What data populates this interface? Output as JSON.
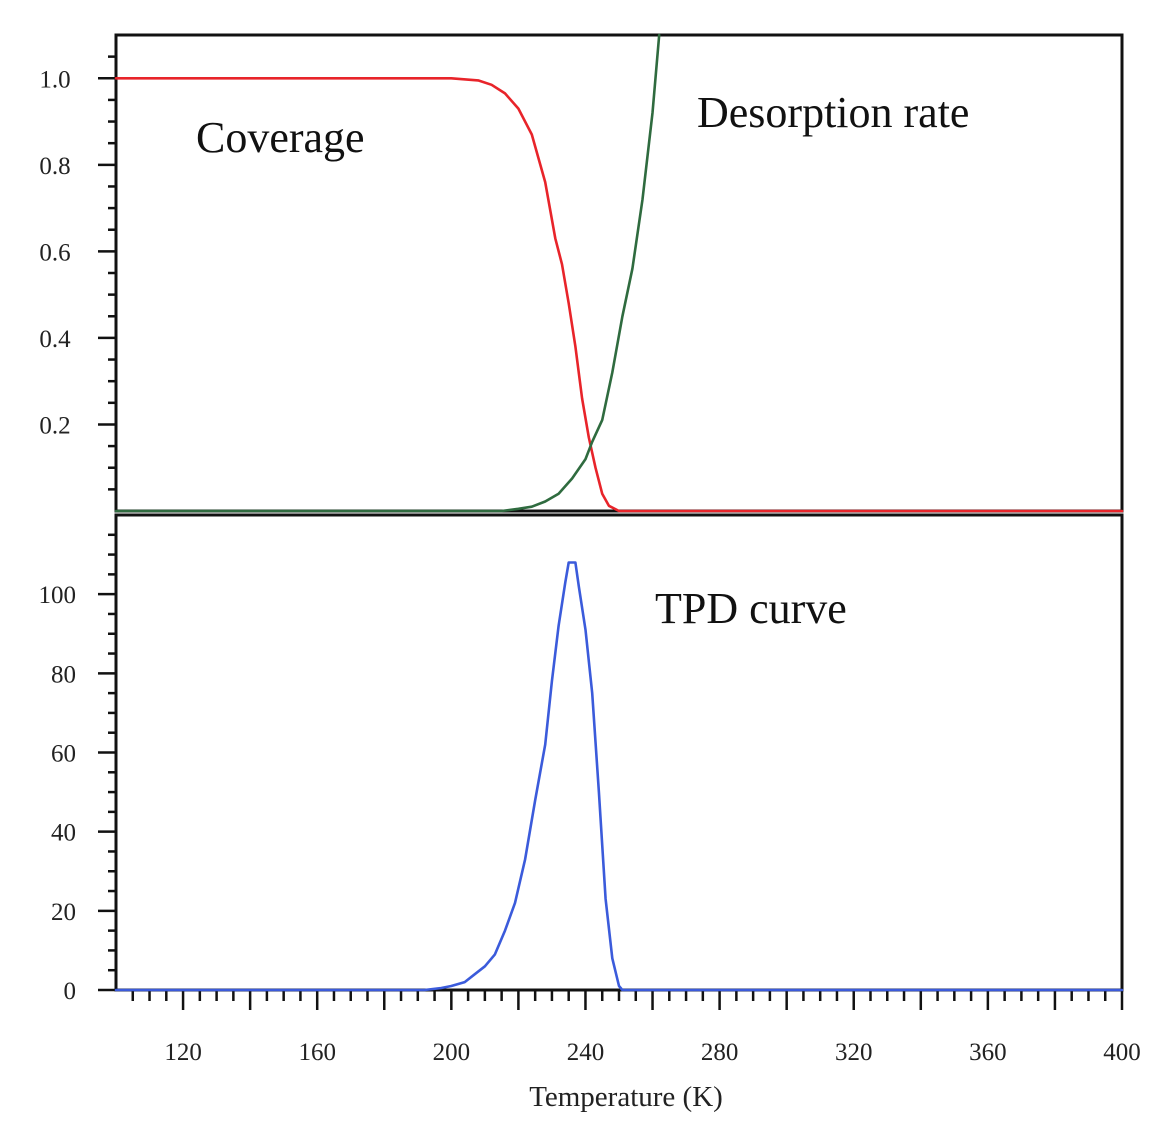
{
  "chart_data": [
    {
      "type": "line",
      "panel": "top",
      "xlim": [
        100,
        400
      ],
      "ylim": [
        0,
        1.1
      ],
      "yticks": [
        1.0,
        0.8,
        0.6,
        0.4,
        0.2
      ],
      "ytick_labels": [
        "1.0",
        "0.8",
        "0.6",
        "0.4",
        "0.2"
      ],
      "grid": false,
      "annotations": [
        "Coverage",
        "Desorption rate"
      ],
      "series": [
        {
          "label": "Coverage",
          "color": "#e8242a",
          "points": [
            [
              100,
              1.0
            ],
            [
              200,
              1.0
            ],
            [
              208,
              0.995
            ],
            [
              212,
              0.985
            ],
            [
              216,
              0.965
            ],
            [
              220,
              0.93
            ],
            [
              224,
              0.87
            ],
            [
              228,
              0.76
            ],
            [
              231,
              0.63
            ],
            [
              233,
              0.57
            ],
            [
              235,
              0.48
            ],
            [
              237,
              0.38
            ],
            [
              239,
              0.26
            ],
            [
              241,
              0.17
            ],
            [
              243,
              0.1
            ],
            [
              245,
              0.04
            ],
            [
              247,
              0.012
            ],
            [
              250,
              0.0
            ],
            [
              300,
              0.0
            ],
            [
              400,
              0.0
            ]
          ]
        },
        {
          "label": "Desorption rate",
          "color": "#2f6b3f",
          "points": [
            [
              100,
              0.0
            ],
            [
              215,
              0.0
            ],
            [
              220,
              0.005
            ],
            [
              224,
              0.01
            ],
            [
              228,
              0.022
            ],
            [
              232,
              0.04
            ],
            [
              236,
              0.075
            ],
            [
              240,
              0.12
            ],
            [
              242,
              0.16
            ],
            [
              245,
              0.21
            ],
            [
              248,
              0.32
            ],
            [
              251,
              0.45
            ],
            [
              254,
              0.56
            ],
            [
              257,
              0.72
            ],
            [
              260,
              0.92
            ],
            [
              262,
              1.1
            ]
          ]
        }
      ]
    },
    {
      "type": "line",
      "panel": "bottom",
      "xlim": [
        100,
        400
      ],
      "ylim": [
        0,
        120
      ],
      "xticks": [
        120,
        160,
        200,
        240,
        280,
        320,
        360,
        400
      ],
      "xtick_labels": [
        "120",
        "160",
        "200",
        "240",
        "280",
        "320",
        "360",
        "400"
      ],
      "yticks": [
        100,
        80,
        60,
        40,
        20,
        0
      ],
      "ytick_labels": [
        "100",
        "80",
        "60",
        "40",
        "20",
        "0"
      ],
      "xlabel": "Temperature (K)",
      "grid": false,
      "annotations": [
        "TPD curve"
      ],
      "series": [
        {
          "label": "TPD curve",
          "color": "#3b5bdb",
          "points": [
            [
              100,
              0
            ],
            [
              192,
              0
            ],
            [
              197,
              0.5
            ],
            [
              200,
              1
            ],
            [
              204,
              2
            ],
            [
              207,
              4
            ],
            [
              210,
              6
            ],
            [
              213,
              9
            ],
            [
              216,
              15
            ],
            [
              219,
              22
            ],
            [
              222,
              33
            ],
            [
              225,
              48
            ],
            [
              228,
              62
            ],
            [
              230,
              78
            ],
            [
              232,
              92
            ],
            [
              234,
              103
            ],
            [
              235,
              108
            ],
            [
              237,
              108
            ],
            [
              238,
              102
            ],
            [
              240,
              91
            ],
            [
              242,
              75
            ],
            [
              244,
              50
            ],
            [
              246,
              23
            ],
            [
              248,
              8
            ],
            [
              250,
              1
            ],
            [
              251,
              0
            ],
            [
              400,
              0
            ]
          ]
        }
      ]
    }
  ]
}
